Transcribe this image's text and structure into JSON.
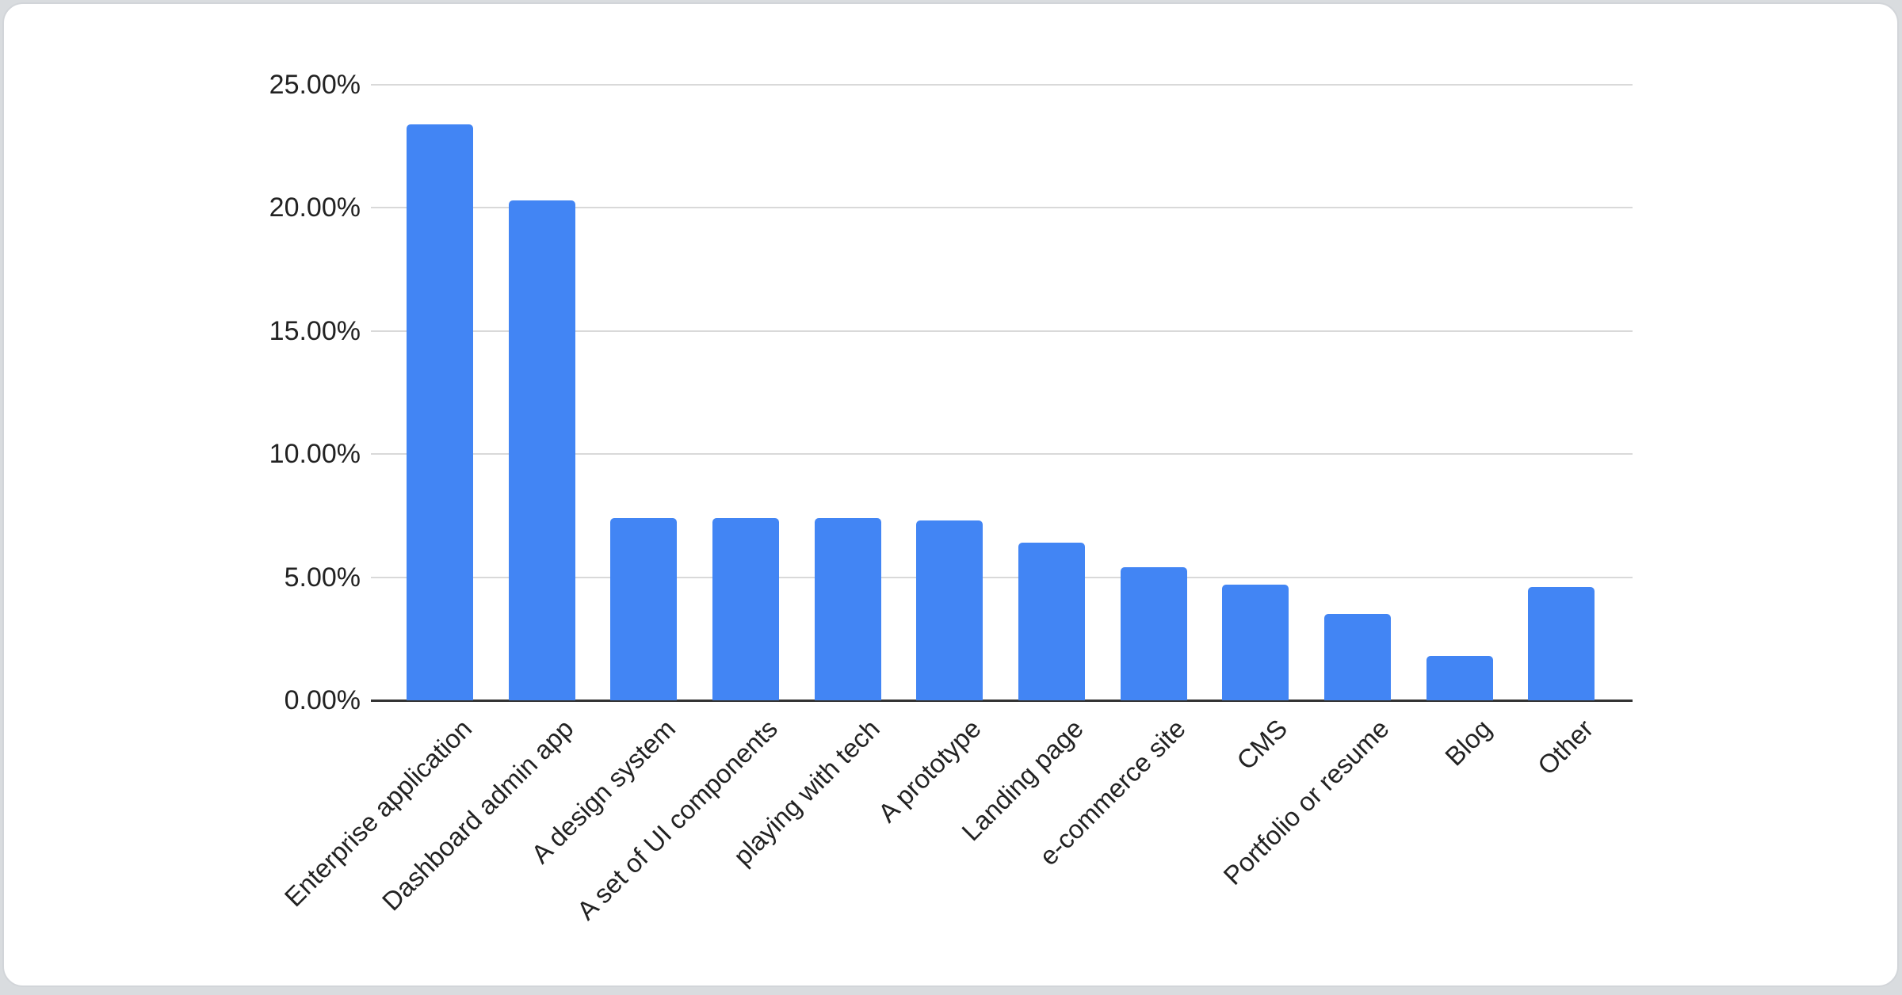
{
  "page": {
    "background": "#d9dcdf",
    "card_background": "#ffffff",
    "card_border": "#d2d5d9"
  },
  "chart_data": {
    "type": "bar",
    "title": "",
    "categories": [
      "Enterprise application",
      "Dashboard admin app",
      "A design system",
      "A set of UI components",
      "playing with tech",
      "A prototype",
      "Landing page",
      "e-commerce site",
      "CMS",
      "Portfolio or resume",
      "Blog",
      "Other"
    ],
    "values": [
      23.4,
      20.3,
      7.4,
      7.4,
      7.4,
      7.3,
      6.4,
      5.4,
      4.7,
      3.5,
      1.8,
      4.6
    ],
    "value_unit": "%",
    "xlabel": "",
    "ylabel": "",
    "ylim": [
      0,
      25
    ],
    "yticks": [
      {
        "value": 0,
        "label": "0.00%"
      },
      {
        "value": 5,
        "label": "5.00%"
      },
      {
        "value": 10,
        "label": "10.00%"
      },
      {
        "value": 15,
        "label": "15.00%"
      },
      {
        "value": 20,
        "label": "20.00%"
      },
      {
        "value": 25,
        "label": "25.00%"
      }
    ],
    "grid": true,
    "legend": "none",
    "x_label_rotation_deg": -45,
    "colors": {
      "bar": "#4285f4",
      "gridline": "#d9d9d9",
      "baseline": "#333333",
      "axis_text": "#222222"
    }
  }
}
